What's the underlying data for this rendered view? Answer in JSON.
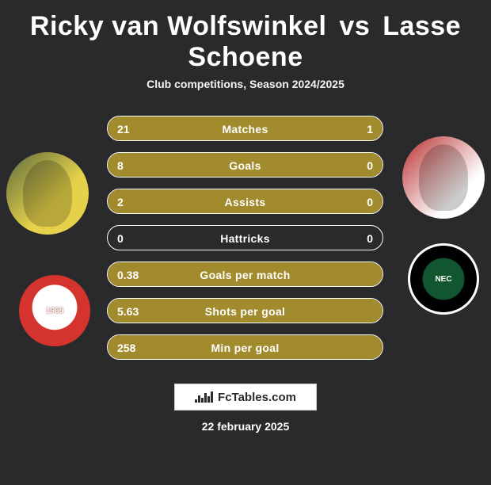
{
  "header": {
    "player1": "Ricky van Wolfswinkel",
    "vs": "vs",
    "player2": "Lasse Schoene",
    "subtitle": "Club competitions, Season 2024/2025"
  },
  "stats": [
    {
      "label": "Matches",
      "p1": "21",
      "p2": "1",
      "p1_pct": 96,
      "p2_pct": 14
    },
    {
      "label": "Goals",
      "p1": "8",
      "p2": "0",
      "p1_pct": 100,
      "p2_pct": 0
    },
    {
      "label": "Assists",
      "p1": "2",
      "p2": "0",
      "p1_pct": 100,
      "p2_pct": 0
    },
    {
      "label": "Hattricks",
      "p1": "0",
      "p2": "0",
      "p1_pct": 0,
      "p2_pct": 0
    },
    {
      "label": "Goals per match",
      "p1": "0.38",
      "p2": "",
      "p1_pct": 100,
      "p2_pct": 0
    },
    {
      "label": "Shots per goal",
      "p1": "5.63",
      "p2": "",
      "p1_pct": 100,
      "p2_pct": 0
    },
    {
      "label": "Min per goal",
      "p1": "258",
      "p2": "",
      "p1_pct": 100,
      "p2_pct": 0
    }
  ],
  "colors": {
    "bar_p1": "#a18b2d",
    "bar_p2": "#a18b2d",
    "bar_border": "#ffffff",
    "background": "#2a2a2d",
    "text": "#ffffff"
  },
  "branding": {
    "label": "FcTables.com"
  },
  "clubs": {
    "p1_label": "1965",
    "p2_label": "NEC"
  },
  "date": "22 february 2025"
}
